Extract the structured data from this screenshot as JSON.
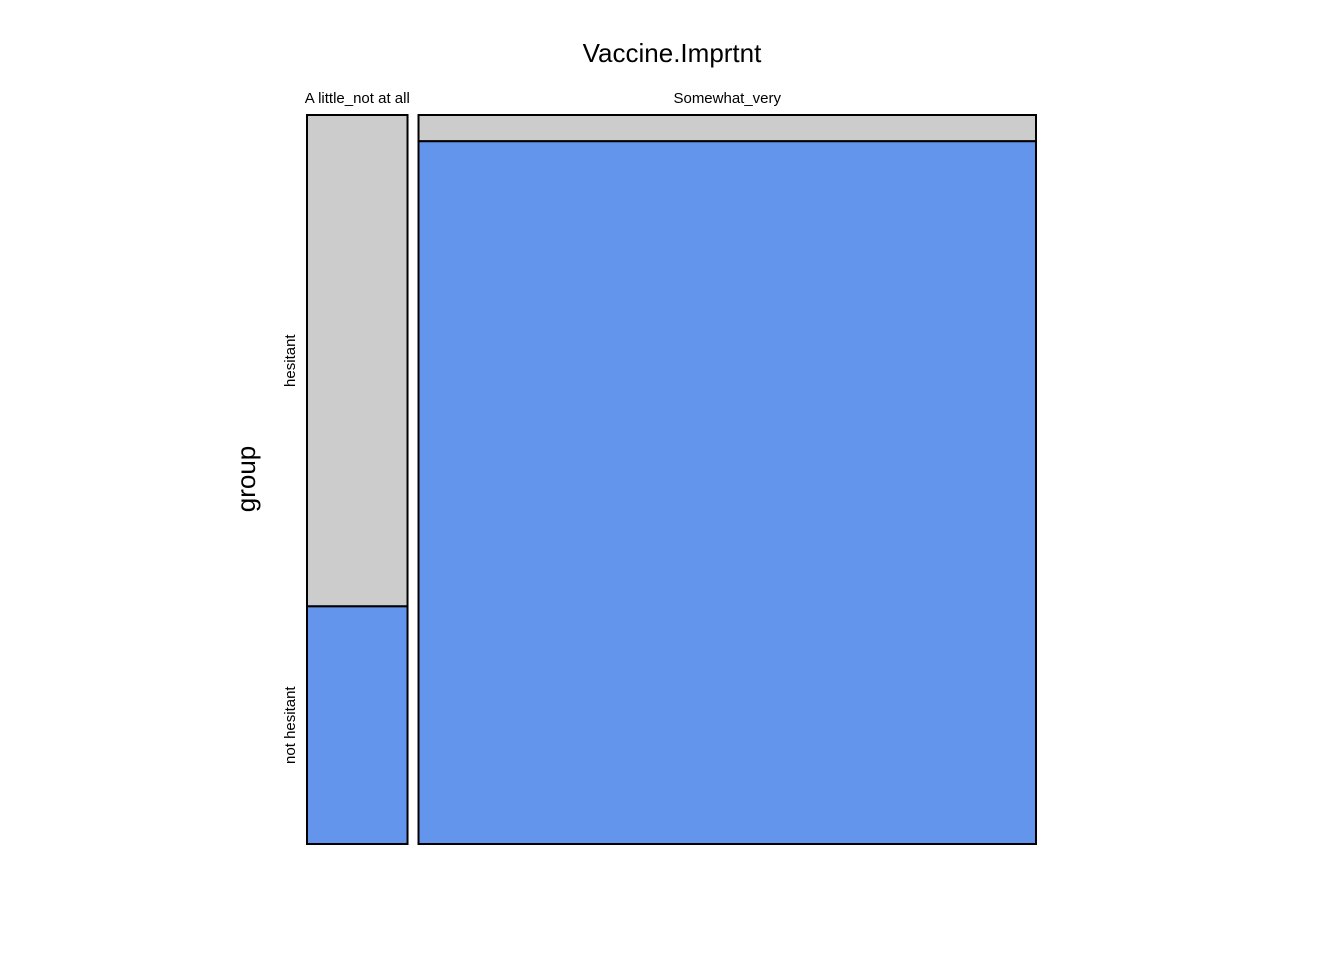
{
  "chart_data": {
    "type": "mosaic",
    "title": "Vaccine.Imprtnt",
    "xvar": "Vaccine.Imprtnt",
    "yvar": "group",
    "ylabel": "group",
    "columns": [
      {
        "label": "A little_not at all",
        "width_share": 0.14,
        "segments": {
          "hesitant": 0.674,
          "not hesitant": 0.326
        }
      },
      {
        "label": "Somewhat_very",
        "width_share": 0.86,
        "segments": {
          "hesitant": 0.036,
          "not hesitant": 0.964
        }
      }
    ],
    "row_labels": [
      "hesitant",
      "not hesitant"
    ],
    "row_label_column": 0,
    "colors": {
      "hesitant": "#cccccc",
      "not hesitant": "#6495ed"
    }
  }
}
